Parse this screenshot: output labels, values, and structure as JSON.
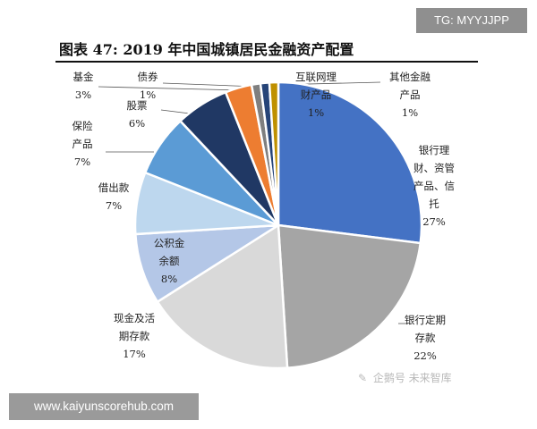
{
  "header": {
    "tg_badge": "TG: MYYJJPP"
  },
  "footer": {
    "url_badge": "www.kaiyunscorehub.com",
    "watermark": "企鹅号 未来智库"
  },
  "chart_data": {
    "type": "pie",
    "title": "图表 47: 2019 年中国城镇居民金融资产配置",
    "slices": [
      {
        "label_lines": [
          "银行理",
          "财、资管",
          "产品、信",
          "托"
        ],
        "pct_label": "27%",
        "value": 27,
        "color": "#4472c4"
      },
      {
        "label_lines": [
          "银行定期",
          "存款"
        ],
        "pct_label": "22%",
        "value": 22,
        "color": "#a5a5a5"
      },
      {
        "label_lines": [
          "现金及活",
          "期存款"
        ],
        "pct_label": "17%",
        "value": 17,
        "color": "#d9d9d9"
      },
      {
        "label_lines": [
          "公积金",
          "余额"
        ],
        "pct_label": "8%",
        "value": 8,
        "color": "#b4c7e7"
      },
      {
        "label_lines": [
          "借出款"
        ],
        "pct_label": "7%",
        "value": 7,
        "color": "#bdd7ee"
      },
      {
        "label_lines": [
          "保险",
          "产品"
        ],
        "pct_label": "7%",
        "value": 7,
        "color": "#5b9bd5"
      },
      {
        "label_lines": [
          "股票"
        ],
        "pct_label": "6%",
        "value": 6,
        "color": "#203864"
      },
      {
        "label_lines": [
          "基金"
        ],
        "pct_label": "3%",
        "value": 3,
        "color": "#ed7d31"
      },
      {
        "label_lines": [
          "债券"
        ],
        "pct_label": "1%",
        "value": 1,
        "color": "#7f7f7f"
      },
      {
        "label_lines": [
          "互联网理",
          "财产品"
        ],
        "pct_label": "1%",
        "value": 1,
        "color": "#264478"
      },
      {
        "label_lines": [
          "其他金融",
          "产品"
        ],
        "pct_label": "1%",
        "value": 1,
        "color": "#bf9000"
      }
    ]
  }
}
